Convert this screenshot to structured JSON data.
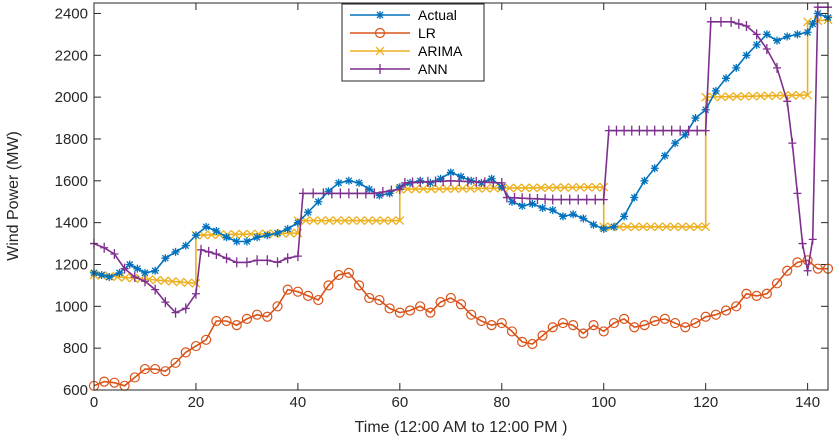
{
  "chart_data": {
    "type": "line",
    "title": "",
    "xlabel": "Time (12:00 AM to 12:00 PM )",
    "ylabel": "Wind Power (MW)",
    "xlim": [
      0,
      144
    ],
    "ylim": [
      600,
      2450
    ],
    "xticks": [
      0,
      20,
      40,
      60,
      80,
      100,
      120,
      140
    ],
    "yticks": [
      600,
      800,
      1000,
      1200,
      1400,
      1600,
      1800,
      2000,
      2200,
      2400
    ],
    "legend_position": "top-center",
    "series": [
      {
        "name": "Actual",
        "color": "#0072BD",
        "marker": "asterisk",
        "points": [
          [
            0,
            1160
          ],
          [
            3,
            1140
          ],
          [
            5,
            1160
          ],
          [
            7,
            1200
          ],
          [
            10,
            1160
          ],
          [
            12,
            1170
          ],
          [
            14,
            1230
          ],
          [
            16,
            1260
          ],
          [
            18,
            1290
          ],
          [
            20,
            1340
          ],
          [
            22,
            1380
          ],
          [
            24,
            1360
          ],
          [
            26,
            1330
          ],
          [
            28,
            1310
          ],
          [
            30,
            1310
          ],
          [
            32,
            1330
          ],
          [
            34,
            1340
          ],
          [
            36,
            1350
          ],
          [
            38,
            1370
          ],
          [
            40,
            1400
          ],
          [
            42,
            1450
          ],
          [
            44,
            1500
          ],
          [
            46,
            1550
          ],
          [
            48,
            1590
          ],
          [
            50,
            1600
          ],
          [
            52,
            1590
          ],
          [
            54,
            1560
          ],
          [
            56,
            1530
          ],
          [
            58,
            1540
          ],
          [
            60,
            1570
          ],
          [
            62,
            1590
          ],
          [
            64,
            1600
          ],
          [
            66,
            1590
          ],
          [
            68,
            1610
          ],
          [
            70,
            1640
          ],
          [
            72,
            1620
          ],
          [
            74,
            1600
          ],
          [
            76,
            1590
          ],
          [
            78,
            1610
          ],
          [
            80,
            1570
          ],
          [
            82,
            1500
          ],
          [
            84,
            1480
          ],
          [
            86,
            1490
          ],
          [
            88,
            1470
          ],
          [
            90,
            1460
          ],
          [
            92,
            1430
          ],
          [
            94,
            1440
          ],
          [
            96,
            1420
          ],
          [
            98,
            1390
          ],
          [
            100,
            1370
          ],
          [
            102,
            1380
          ],
          [
            104,
            1430
          ],
          [
            106,
            1520
          ],
          [
            108,
            1600
          ],
          [
            110,
            1660
          ],
          [
            112,
            1720
          ],
          [
            114,
            1780
          ],
          [
            116,
            1820
          ],
          [
            118,
            1900
          ],
          [
            120,
            1940
          ],
          [
            122,
            2030
          ],
          [
            124,
            2090
          ],
          [
            126,
            2140
          ],
          [
            128,
            2200
          ],
          [
            130,
            2250
          ],
          [
            132,
            2300
          ],
          [
            134,
            2270
          ],
          [
            136,
            2290
          ],
          [
            138,
            2300
          ],
          [
            140,
            2310
          ],
          [
            141,
            2350
          ],
          [
            142,
            2400
          ],
          [
            144,
            2380
          ]
        ]
      },
      {
        "name": "LR",
        "color": "#D95319",
        "marker": "circle",
        "points": [
          [
            0,
            620
          ],
          [
            2,
            640
          ],
          [
            4,
            635
          ],
          [
            6,
            620
          ],
          [
            8,
            660
          ],
          [
            10,
            700
          ],
          [
            12,
            700
          ],
          [
            14,
            690
          ],
          [
            16,
            730
          ],
          [
            18,
            780
          ],
          [
            20,
            810
          ],
          [
            22,
            840
          ],
          [
            24,
            930
          ],
          [
            26,
            930
          ],
          [
            28,
            910
          ],
          [
            30,
            940
          ],
          [
            32,
            960
          ],
          [
            34,
            950
          ],
          [
            36,
            1000
          ],
          [
            38,
            1080
          ],
          [
            40,
            1070
          ],
          [
            42,
            1050
          ],
          [
            44,
            1030
          ],
          [
            46,
            1100
          ],
          [
            48,
            1150
          ],
          [
            50,
            1160
          ],
          [
            52,
            1100
          ],
          [
            54,
            1040
          ],
          [
            56,
            1030
          ],
          [
            58,
            990
          ],
          [
            60,
            970
          ],
          [
            62,
            980
          ],
          [
            64,
            1000
          ],
          [
            66,
            970
          ],
          [
            68,
            1020
          ],
          [
            70,
            1040
          ],
          [
            72,
            1010
          ],
          [
            74,
            960
          ],
          [
            76,
            930
          ],
          [
            78,
            910
          ],
          [
            80,
            920
          ],
          [
            82,
            880
          ],
          [
            84,
            830
          ],
          [
            86,
            820
          ],
          [
            88,
            860
          ],
          [
            90,
            900
          ],
          [
            92,
            920
          ],
          [
            94,
            910
          ],
          [
            96,
            870
          ],
          [
            98,
            910
          ],
          [
            100,
            880
          ],
          [
            102,
            920
          ],
          [
            104,
            940
          ],
          [
            106,
            900
          ],
          [
            108,
            910
          ],
          [
            110,
            930
          ],
          [
            112,
            940
          ],
          [
            114,
            920
          ],
          [
            116,
            900
          ],
          [
            118,
            920
          ],
          [
            120,
            950
          ],
          [
            122,
            960
          ],
          [
            124,
            980
          ],
          [
            126,
            1000
          ],
          [
            128,
            1060
          ],
          [
            130,
            1050
          ],
          [
            132,
            1060
          ],
          [
            134,
            1110
          ],
          [
            136,
            1170
          ],
          [
            138,
            1210
          ],
          [
            140,
            1220
          ],
          [
            142,
            1180
          ],
          [
            144,
            1180
          ]
        ]
      },
      {
        "name": "ARIMA",
        "color": "#EDB120",
        "marker": "x",
        "points": [
          [
            0,
            1150
          ],
          [
            20,
            1110
          ],
          [
            20,
            1340
          ],
          [
            40,
            1350
          ],
          [
            40,
            1410
          ],
          [
            60,
            1410
          ],
          [
            60,
            1560
          ],
          [
            100,
            1570
          ],
          [
            100,
            1380
          ],
          [
            120,
            1380
          ],
          [
            120,
            2000
          ],
          [
            140,
            2010
          ],
          [
            140,
            2360
          ],
          [
            144,
            2370
          ]
        ]
      },
      {
        "name": "ANN",
        "color": "#7E2F8E",
        "marker": "plus",
        "points": [
          [
            0,
            1300
          ],
          [
            2,
            1280
          ],
          [
            4,
            1250
          ],
          [
            6,
            1180
          ],
          [
            8,
            1140
          ],
          [
            10,
            1120
          ],
          [
            12,
            1080
          ],
          [
            14,
            1020
          ],
          [
            16,
            970
          ],
          [
            18,
            990
          ],
          [
            20,
            1060
          ],
          [
            21,
            1270
          ],
          [
            24,
            1250
          ],
          [
            26,
            1230
          ],
          [
            28,
            1210
          ],
          [
            30,
            1210
          ],
          [
            32,
            1220
          ],
          [
            34,
            1220
          ],
          [
            36,
            1210
          ],
          [
            38,
            1230
          ],
          [
            40,
            1240
          ],
          [
            41,
            1540
          ],
          [
            45,
            1540
          ],
          [
            50,
            1540
          ],
          [
            55,
            1540
          ],
          [
            60,
            1560
          ],
          [
            61,
            1590
          ],
          [
            70,
            1600
          ],
          [
            80,
            1590
          ],
          [
            81,
            1520
          ],
          [
            90,
            1510
          ],
          [
            100,
            1510
          ],
          [
            101,
            1840
          ],
          [
            110,
            1840
          ],
          [
            120,
            1840
          ],
          [
            121,
            2360
          ],
          [
            125,
            2360
          ],
          [
            128,
            2340
          ],
          [
            130,
            2300
          ],
          [
            132,
            2230
          ],
          [
            134,
            2140
          ],
          [
            136,
            1980
          ],
          [
            137,
            1780
          ],
          [
            138,
            1540
          ],
          [
            139,
            1300
          ],
          [
            140,
            1170
          ],
          [
            141,
            1320
          ],
          [
            142,
            2430
          ],
          [
            144,
            2430
          ]
        ]
      }
    ]
  }
}
